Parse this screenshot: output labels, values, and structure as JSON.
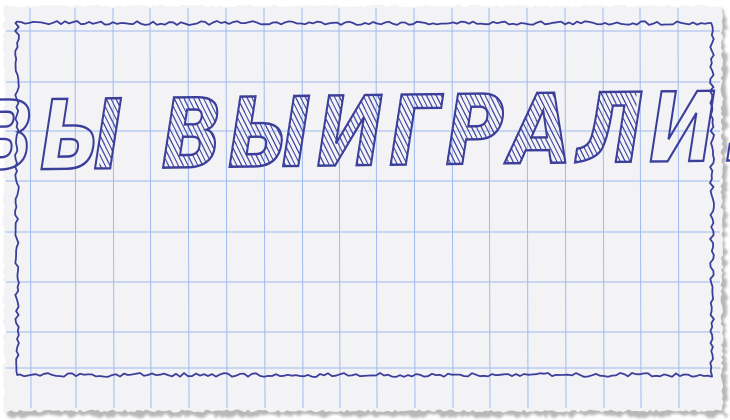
{
  "screen": {
    "message": "ВЫ ВЫИГРАЛИ!"
  },
  "colors": {
    "paper": "#f3f3f5",
    "grid_line": "#8fb1ee",
    "border_ink": "#3b3f9a",
    "text_ink": "#3b3f9a",
    "shadow": "#b8b8b8"
  },
  "icons": {
    "border": "hand-drawn-wavy-border",
    "background": "graph-paper-grid"
  }
}
